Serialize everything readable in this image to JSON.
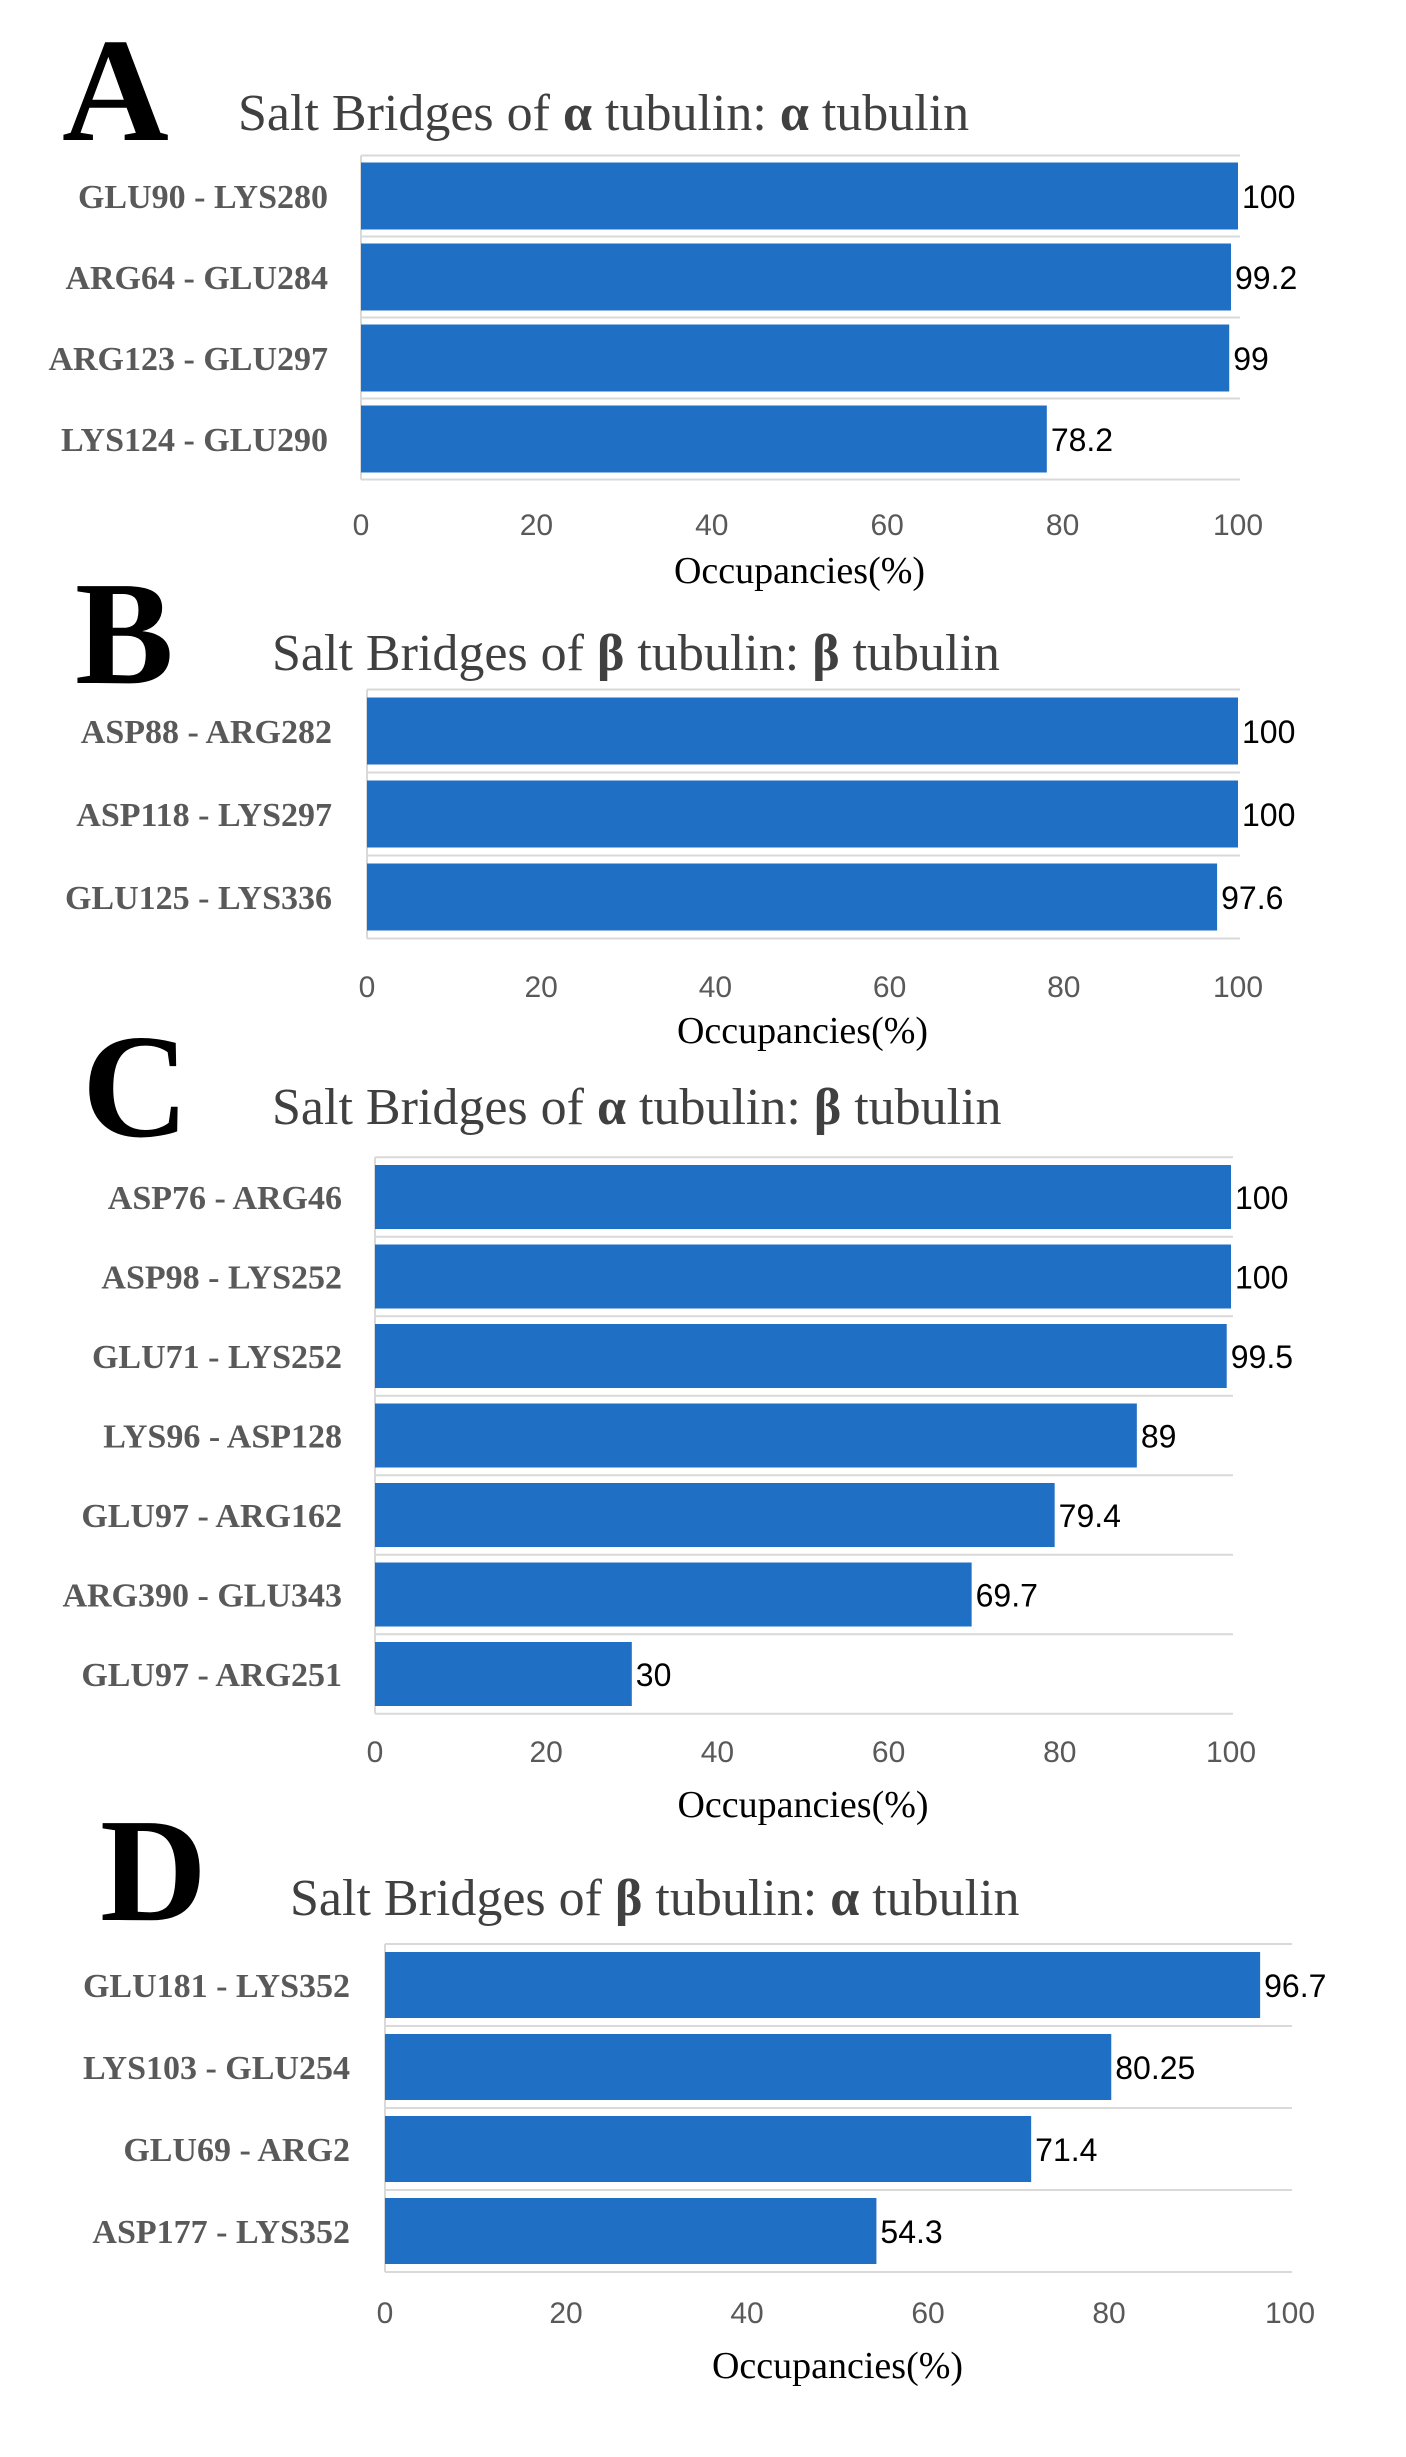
{
  "chart_data": [
    {
      "type": "bar",
      "orientation": "horizontal",
      "panel": "A",
      "title_prefix": "Salt Bridges of ",
      "title_g1": "α",
      "title_mid": " tubulin: ",
      "title_g2": "α",
      "title_suffix": " tubulin",
      "categories": [
        "GLU90 - LYS280",
        "ARG64 - GLU284",
        "ARG123 - GLU297",
        "LYS124 - GLU290"
      ],
      "values": [
        100,
        99.2,
        99,
        78.2
      ],
      "value_labels": [
        "100",
        "99.2",
        "99",
        "78.2"
      ],
      "xlabel": "Occupancies(%)",
      "xlim": [
        0,
        100
      ],
      "ticks": [
        0,
        20,
        40,
        60,
        80,
        100
      ],
      "tick_labels": [
        "0",
        "20",
        "40",
        "60",
        "80",
        "100"
      ],
      "bar_color": "#1F6FC5"
    },
    {
      "type": "bar",
      "orientation": "horizontal",
      "panel": "B",
      "title_prefix": "Salt Bridges of ",
      "title_g1": "β",
      "title_mid": " tubulin: ",
      "title_g2": "β",
      "title_suffix": " tubulin",
      "categories": [
        "ASP88 - ARG282",
        "ASP118 - LYS297",
        "GLU125 - LYS336"
      ],
      "values": [
        100,
        100,
        97.6
      ],
      "value_labels": [
        "100",
        "100",
        "97.6"
      ],
      "xlabel": "Occupancies(%)",
      "xlim": [
        0,
        100
      ],
      "ticks": [
        0,
        20,
        40,
        60,
        80,
        100
      ],
      "tick_labels": [
        "0",
        "20",
        "40",
        "60",
        "80",
        "100"
      ],
      "bar_color": "#1F6FC5"
    },
    {
      "type": "bar",
      "orientation": "horizontal",
      "panel": "C",
      "title_prefix": "Salt Bridges of ",
      "title_g1": "α",
      "title_mid": " tubulin: ",
      "title_g2": "β",
      "title_suffix": " tubulin",
      "categories": [
        "ASP76 - ARG46",
        "ASP98 - LYS252",
        "GLU71 - LYS252",
        "LYS96 - ASP128",
        "GLU97 - ARG162",
        "ARG390 - GLU343",
        "GLU97 - ARG251"
      ],
      "values": [
        100,
        100,
        99.5,
        89,
        79.4,
        69.7,
        30
      ],
      "value_labels": [
        "100",
        "100",
        "99.5",
        "89",
        "79.4",
        "69.7",
        "30"
      ],
      "xlabel": "Occupancies(%)",
      "xlim": [
        0,
        100
      ],
      "ticks": [
        0,
        20,
        40,
        60,
        80,
        100
      ],
      "tick_labels": [
        "0",
        "20",
        "40",
        "60",
        "80",
        "100"
      ],
      "bar_color": "#1F6FC5"
    },
    {
      "type": "bar",
      "orientation": "horizontal",
      "panel": "D",
      "title_prefix": "Salt Bridges of ",
      "title_g1": "β",
      "title_mid": " tubulin: ",
      "title_g2": "α",
      "title_suffix": " tubulin",
      "categories": [
        "GLU181 - LYS352",
        "LYS103 - GLU254",
        "GLU69 - ARG2",
        "ASP177 - LYS352"
      ],
      "values": [
        96.7,
        80.25,
        71.4,
        54.3
      ],
      "value_labels": [
        "96.7",
        "80.25",
        "71.4",
        "54.3"
      ],
      "xlabel": "Occupancies(%)",
      "xlim": [
        0,
        100
      ],
      "ticks": [
        0,
        20,
        40,
        60,
        80,
        100
      ],
      "tick_labels": [
        "0",
        "20",
        "40",
        "60",
        "80",
        "100"
      ],
      "bar_color": "#1F6FC5"
    }
  ]
}
